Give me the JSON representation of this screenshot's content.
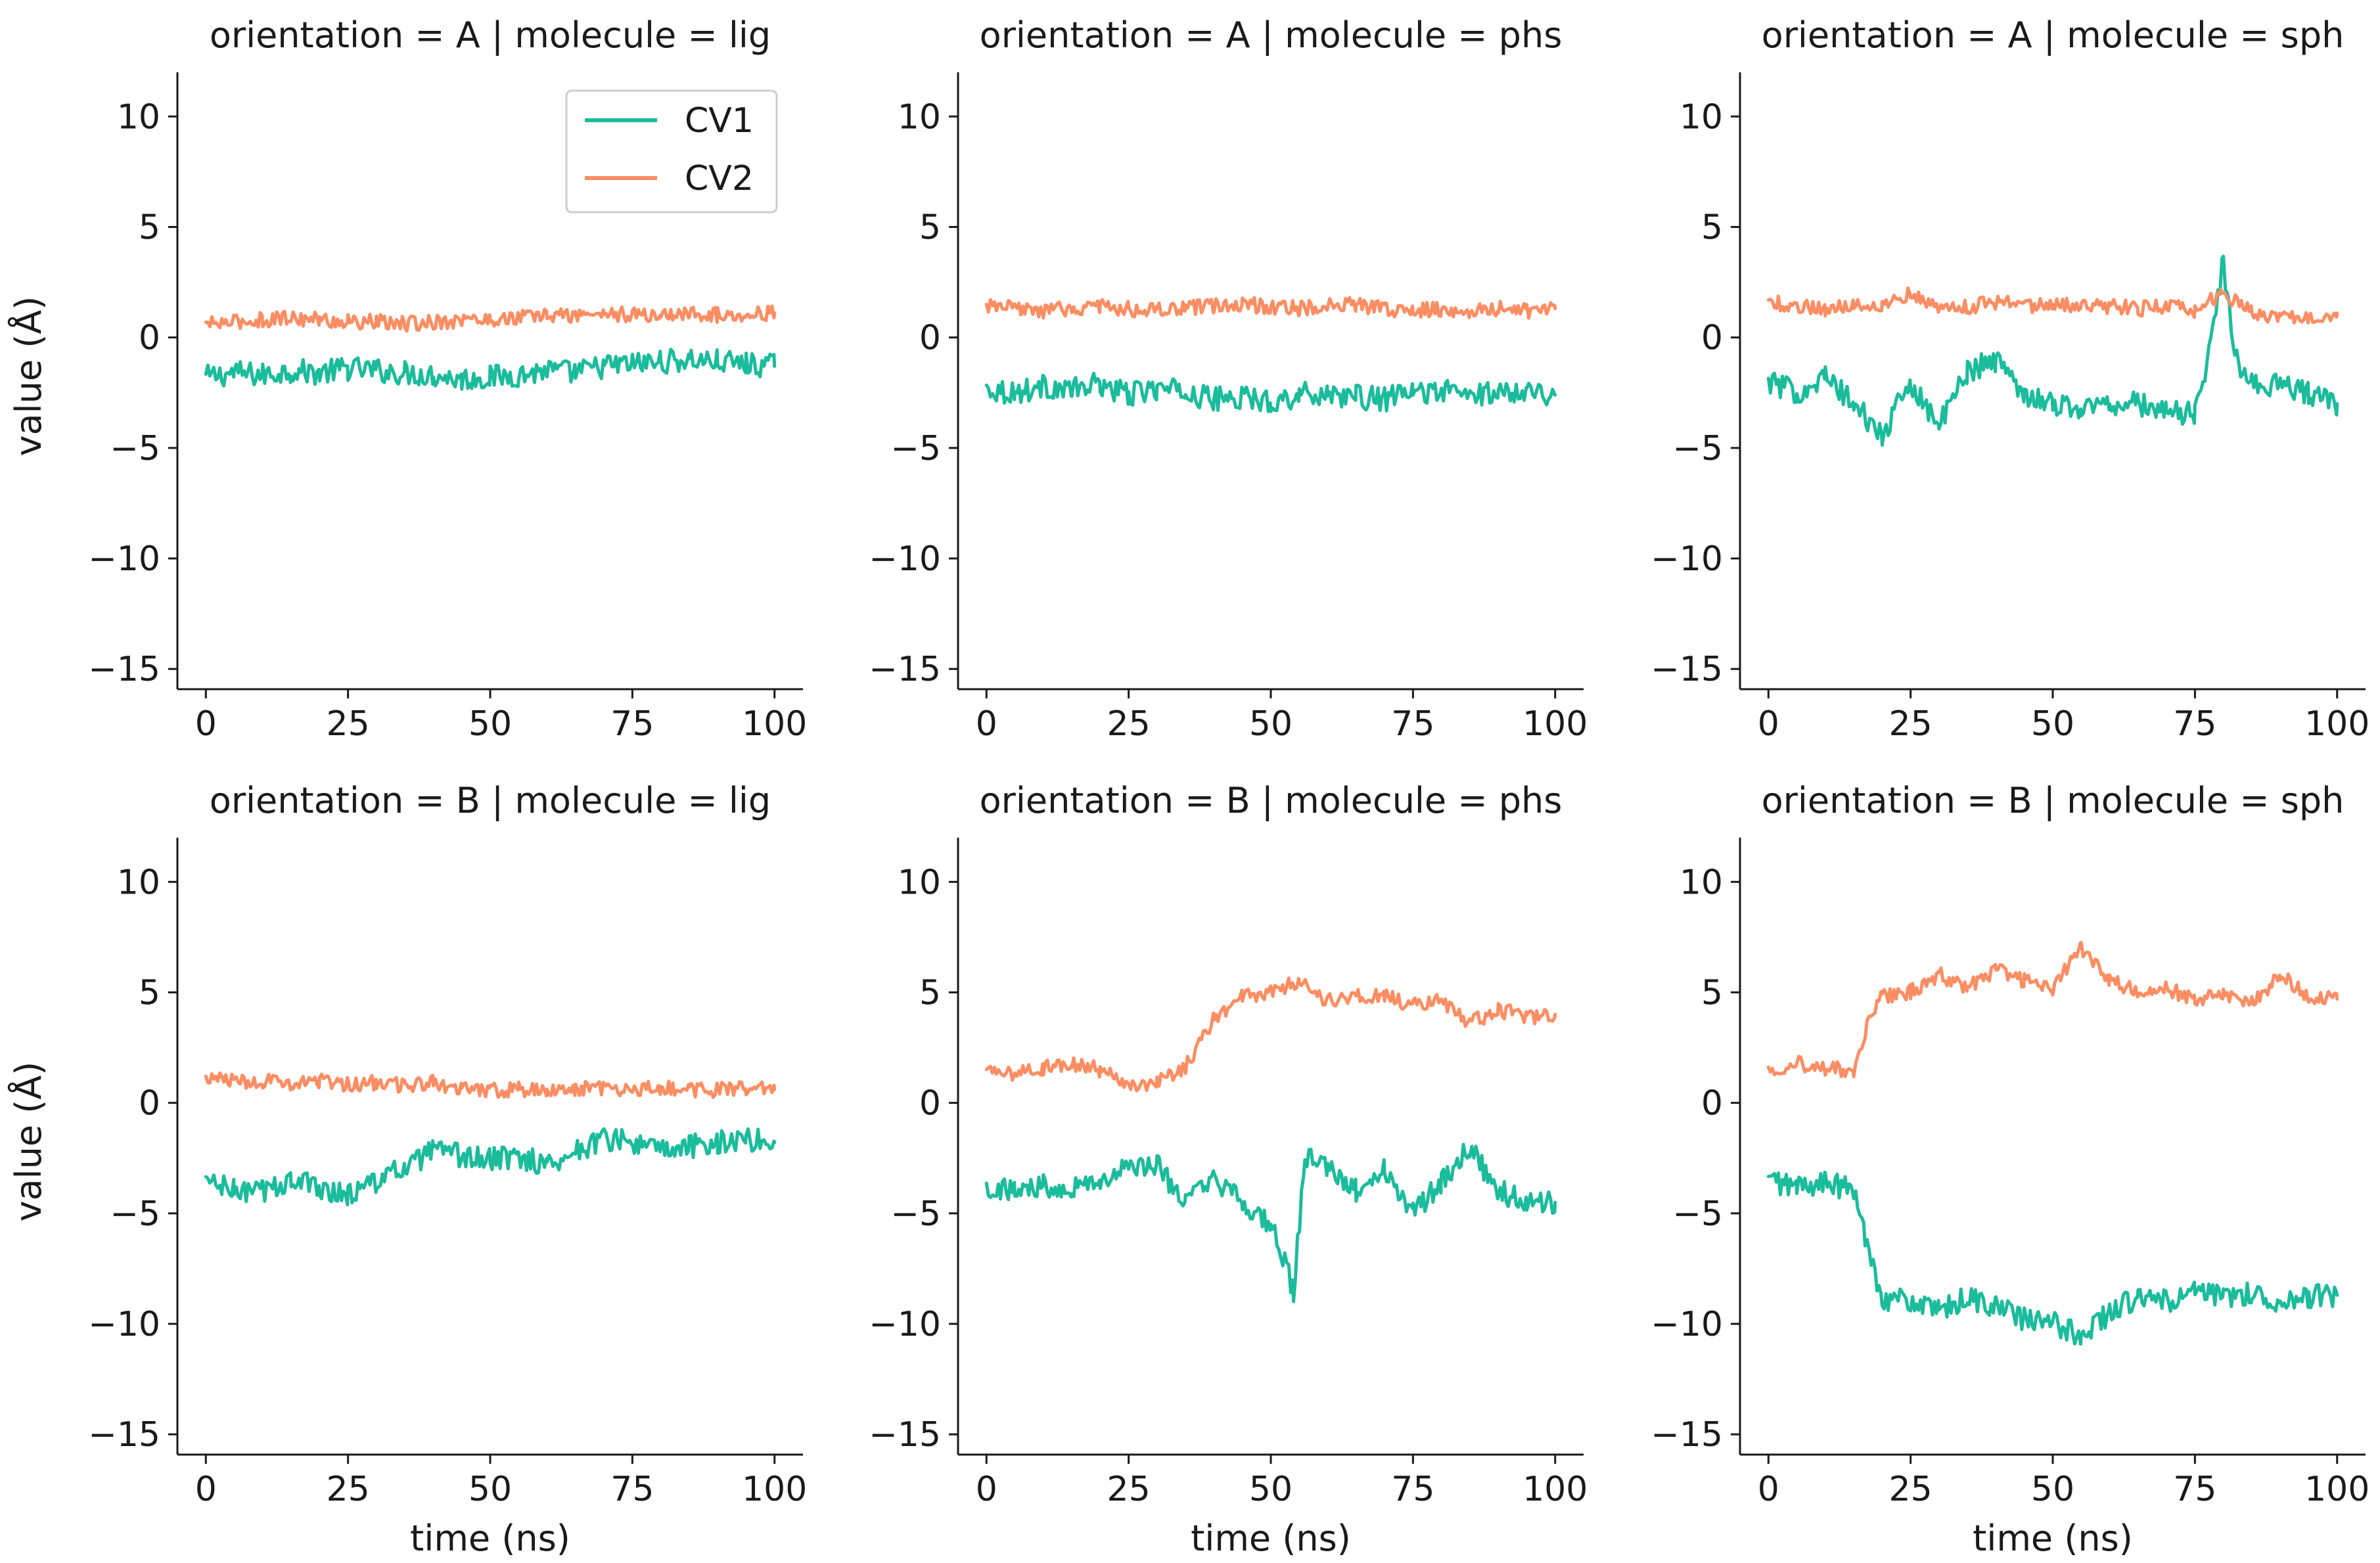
{
  "chart_data": {
    "type": "line",
    "xlabel": "time (ns)",
    "ylabel": "value (Å)",
    "xlim": [
      -5,
      105
    ],
    "ylim": [
      -15.5,
      12
    ],
    "xticks": [
      0,
      25,
      50,
      75,
      100
    ],
    "yticks": [
      -15,
      -10,
      -5,
      0,
      5,
      10
    ],
    "xtick_labels": [
      "0",
      "25",
      "50",
      "75",
      "100"
    ],
    "ytick_labels": [
      "−15",
      "−10",
      "−5",
      "0",
      "5",
      "10"
    ],
    "legend": {
      "placement": "top-right of first panel",
      "entries": [
        {
          "name": "CV1",
          "color": "#1abc9c"
        },
        {
          "name": "CV2",
          "color": "#fc8d62"
        }
      ]
    },
    "colors": {
      "CV1": "#1abc9c",
      "CV2": "#fc8d62"
    },
    "panels": [
      {
        "title": "orientation = A | molecule = lig",
        "row": 0,
        "col": 0,
        "series": [
          {
            "name": "CV1",
            "x": [
              0,
              5,
              10,
              15,
              20,
              25,
              30,
              35,
              40,
              45,
              50,
              55,
              60,
              65,
              70,
              75,
              80,
              85,
              90,
              95,
              100
            ],
            "y": [
              -1.8,
              -1.6,
              -1.7,
              -1.5,
              -1.6,
              -1.4,
              -1.5,
              -1.6,
              -1.7,
              -1.9,
              -1.8,
              -1.7,
              -1.5,
              -1.6,
              -1.3,
              -1.2,
              -1.1,
              -1.0,
              -1.1,
              -1.2,
              -1.3
            ]
          },
          {
            "name": "CV2",
            "x": [
              0,
              5,
              10,
              15,
              20,
              25,
              30,
              35,
              40,
              45,
              50,
              55,
              60,
              65,
              70,
              75,
              80,
              85,
              90,
              95,
              100
            ],
            "y": [
              0.6,
              0.7,
              0.8,
              0.9,
              0.8,
              0.7,
              0.7,
              0.6,
              0.7,
              0.8,
              0.8,
              0.9,
              1.0,
              1.0,
              1.1,
              1.0,
              1.0,
              1.1,
              1.0,
              1.1,
              1.1
            ]
          }
        ]
      },
      {
        "title": "orientation = A | molecule = phs",
        "row": 0,
        "col": 1,
        "series": [
          {
            "name": "CV1",
            "x": [
              0,
              5,
              10,
              15,
              20,
              25,
              30,
              35,
              40,
              45,
              50,
              55,
              60,
              65,
              70,
              75,
              80,
              85,
              90,
              95,
              100
            ],
            "y": [
              -2.3,
              -2.5,
              -2.2,
              -2.4,
              -2.1,
              -2.6,
              -2.3,
              -2.5,
              -2.8,
              -2.7,
              -2.9,
              -2.6,
              -2.5,
              -2.7,
              -2.8,
              -2.5,
              -2.4,
              -2.6,
              -2.5,
              -2.3,
              -2.6
            ]
          },
          {
            "name": "CV2",
            "x": [
              0,
              5,
              10,
              15,
              20,
              25,
              30,
              35,
              40,
              45,
              50,
              55,
              60,
              65,
              70,
              75,
              80,
              85,
              90,
              95,
              100
            ],
            "y": [
              1.4,
              1.3,
              1.2,
              1.3,
              1.4,
              1.3,
              1.2,
              1.3,
              1.4,
              1.5,
              1.4,
              1.3,
              1.4,
              1.5,
              1.3,
              1.2,
              1.3,
              1.2,
              1.3,
              1.2,
              1.3
            ]
          }
        ]
      },
      {
        "title": "orientation = A | molecule = sph",
        "row": 0,
        "col": 2,
        "series": [
          {
            "name": "CV1",
            "x": [
              0,
              5,
              10,
              15,
              20,
              25,
              30,
              35,
              40,
              45,
              50,
              55,
              60,
              65,
              70,
              75,
              78,
              80,
              82,
              85,
              90,
              95,
              100
            ],
            "y": [
              -2.0,
              -2.5,
              -1.8,
              -3.0,
              -4.5,
              -2.0,
              -4.0,
              -1.5,
              -1.0,
              -2.5,
              -3.0,
              -3.2,
              -3.0,
              -3.0,
              -3.3,
              -3.5,
              0.0,
              3.5,
              -1.0,
              -2.0,
              -2.2,
              -2.5,
              -3.0
            ]
          },
          {
            "name": "CV2",
            "x": [
              0,
              5,
              10,
              15,
              20,
              25,
              30,
              35,
              40,
              45,
              50,
              55,
              60,
              65,
              70,
              75,
              80,
              85,
              90,
              95,
              100
            ],
            "y": [
              1.6,
              1.4,
              1.3,
              1.5,
              1.5,
              2.0,
              1.3,
              1.4,
              1.6,
              1.5,
              1.4,
              1.5,
              1.4,
              1.3,
              1.4,
              1.2,
              2.0,
              1.1,
              1.0,
              1.0,
              1.1
            ]
          }
        ]
      },
      {
        "title": "orientation = B | molecule = lig",
        "row": 1,
        "col": 0,
        "series": [
          {
            "name": "CV1",
            "x": [
              0,
              5,
              10,
              15,
              20,
              25,
              30,
              35,
              40,
              45,
              50,
              55,
              60,
              65,
              70,
              75,
              80,
              85,
              90,
              95,
              100
            ],
            "y": [
              -3.5,
              -4.0,
              -4.0,
              -3.5,
              -3.8,
              -4.2,
              -3.5,
              -3.0,
              -2.2,
              -2.4,
              -2.6,
              -2.4,
              -2.8,
              -2.2,
              -1.6,
              -1.8,
              -2.2,
              -2.0,
              -1.8,
              -1.6,
              -1.8
            ]
          },
          {
            "name": "CV2",
            "x": [
              0,
              5,
              10,
              15,
              20,
              25,
              30,
              35,
              40,
              45,
              50,
              55,
              60,
              65,
              70,
              75,
              80,
              85,
              90,
              95,
              100
            ],
            "y": [
              1.1,
              1.0,
              1.0,
              0.9,
              1.0,
              0.8,
              0.9,
              0.8,
              0.9,
              0.7,
              0.6,
              0.6,
              0.5,
              0.6,
              0.7,
              0.6,
              0.7,
              0.6,
              0.6,
              0.7,
              0.6
            ]
          }
        ]
      },
      {
        "title": "orientation = B | molecule = phs",
        "row": 1,
        "col": 1,
        "series": [
          {
            "name": "CV1",
            "x": [
              0,
              5,
              10,
              15,
              20,
              25,
              30,
              35,
              40,
              45,
              50,
              54,
              56,
              60,
              65,
              70,
              75,
              80,
              85,
              90,
              95,
              100
            ],
            "y": [
              -3.8,
              -4.0,
              -3.7,
              -3.8,
              -3.5,
              -3.0,
              -2.8,
              -4.5,
              -3.5,
              -4.5,
              -5.5,
              -8.5,
              -2.5,
              -3.0,
              -4.0,
              -3.0,
              -5.0,
              -3.5,
              -2.0,
              -4.0,
              -4.5,
              -4.5
            ]
          },
          {
            "name": "CV2",
            "x": [
              0,
              5,
              10,
              15,
              20,
              25,
              30,
              35,
              40,
              45,
              50,
              55,
              60,
              65,
              70,
              75,
              80,
              85,
              90,
              95,
              100
            ],
            "y": [
              1.4,
              1.3,
              1.6,
              1.8,
              1.5,
              0.9,
              0.9,
              1.6,
              3.8,
              4.8,
              5.0,
              5.5,
              4.6,
              4.8,
              4.8,
              4.4,
              4.6,
              3.6,
              4.2,
              3.9,
              4.0
            ]
          }
        ]
      },
      {
        "title": "orientation = B | molecule = sph",
        "row": 1,
        "col": 2,
        "series": [
          {
            "name": "CV1",
            "x": [
              0,
              5,
              10,
              15,
              17,
              20,
              25,
              30,
              35,
              40,
              45,
              50,
              55,
              60,
              65,
              70,
              75,
              80,
              85,
              90,
              95,
              100
            ],
            "y": [
              -3.5,
              -3.8,
              -3.6,
              -4.0,
              -6.0,
              -8.8,
              -9.0,
              -9.5,
              -8.8,
              -9.2,
              -9.8,
              -10.0,
              -10.5,
              -9.5,
              -8.8,
              -9.0,
              -8.6,
              -8.8,
              -8.6,
              -9.0,
              -8.8,
              -8.7
            ]
          },
          {
            "name": "CV2",
            "x": [
              0,
              5,
              10,
              15,
              17,
              20,
              25,
              30,
              35,
              40,
              45,
              50,
              55,
              60,
              65,
              70,
              75,
              80,
              85,
              90,
              95,
              100
            ],
            "y": [
              1.5,
              1.8,
              1.6,
              1.4,
              3.2,
              4.8,
              5.0,
              5.8,
              5.2,
              6.0,
              5.5,
              5.2,
              7.0,
              5.5,
              5.0,
              5.2,
              4.6,
              5.0,
              4.5,
              5.8,
              4.8,
              4.7
            ]
          }
        ]
      }
    ]
  }
}
